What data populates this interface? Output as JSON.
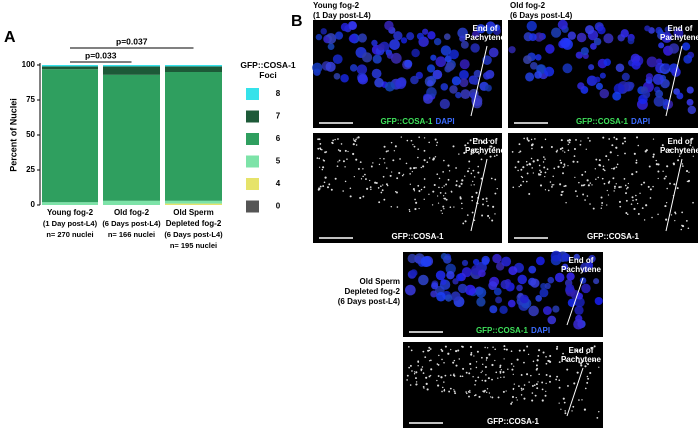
{
  "panel_labels": [
    "A",
    "B"
  ],
  "chart_data": {
    "type": "stacked-bar",
    "y_label": "Percent of Nuclei",
    "categories": [
      "Young fog-2",
      "Old fog-2",
      "Old Sperm Depleted fog-2"
    ],
    "category_details": [
      [
        "(1 Day post-L4)",
        "n= 270 nuclei"
      ],
      [
        "(6 Days post-L4)",
        "n= 166 nuclei"
      ],
      [
        "(6 Days post-L4)",
        "n= 195 nuclei"
      ]
    ],
    "legend_title": "GFP::COSA-1 Foci",
    "series": [
      {
        "name": "0",
        "color": "#555555",
        "values": [
          0,
          0,
          0
        ]
      },
      {
        "name": "4",
        "color": "#e6e36a",
        "values": [
          0,
          0,
          1
        ]
      },
      {
        "name": "5",
        "color": "#7de3a8",
        "values": [
          2,
          3,
          2
        ]
      },
      {
        "name": "6",
        "color": "#2f9f5f",
        "values": [
          95,
          90,
          92
        ]
      },
      {
        "name": "7",
        "color": "#1d5a38",
        "values": [
          2,
          6,
          4
        ]
      },
      {
        "name": "8",
        "color": "#35e2ea",
        "values": [
          1,
          1,
          1
        ]
      }
    ],
    "ylim": [
      0,
      100
    ],
    "yticks": [
      0,
      25,
      50,
      75,
      100
    ],
    "annotations": [
      "p=0.033",
      "p=0.037"
    ]
  },
  "micrographs": [
    {
      "title": [
        "Young fog-2",
        "(1 Day post-L4)"
      ],
      "merge_caption": [
        "GFP::COSA-1",
        "DAPI"
      ],
      "gfp_caption": "GFP::COSA-1",
      "marker": [
        "End of Pachytene",
        "End of Pachytene"
      ]
    },
    {
      "title": [
        "Old fog-2",
        "(6 Days post-L4)"
      ],
      "merge_caption": [
        "GFP::COSA-1",
        "DAPI"
      ],
      "gfp_caption": "GFP::COSA-1",
      "marker": [
        "End of Pachytene",
        "End of Pachytene"
      ]
    },
    {
      "title": [
        "Old Sperm",
        "Depleted fog-2",
        "(6 Days post-L4)"
      ],
      "merge_caption": [
        "GFP::COSA-1",
        "DAPI"
      ],
      "gfp_caption": "GFP::COSA-1",
      "marker": [
        "End of Pachytene",
        "End of Pachytene"
      ]
    }
  ]
}
